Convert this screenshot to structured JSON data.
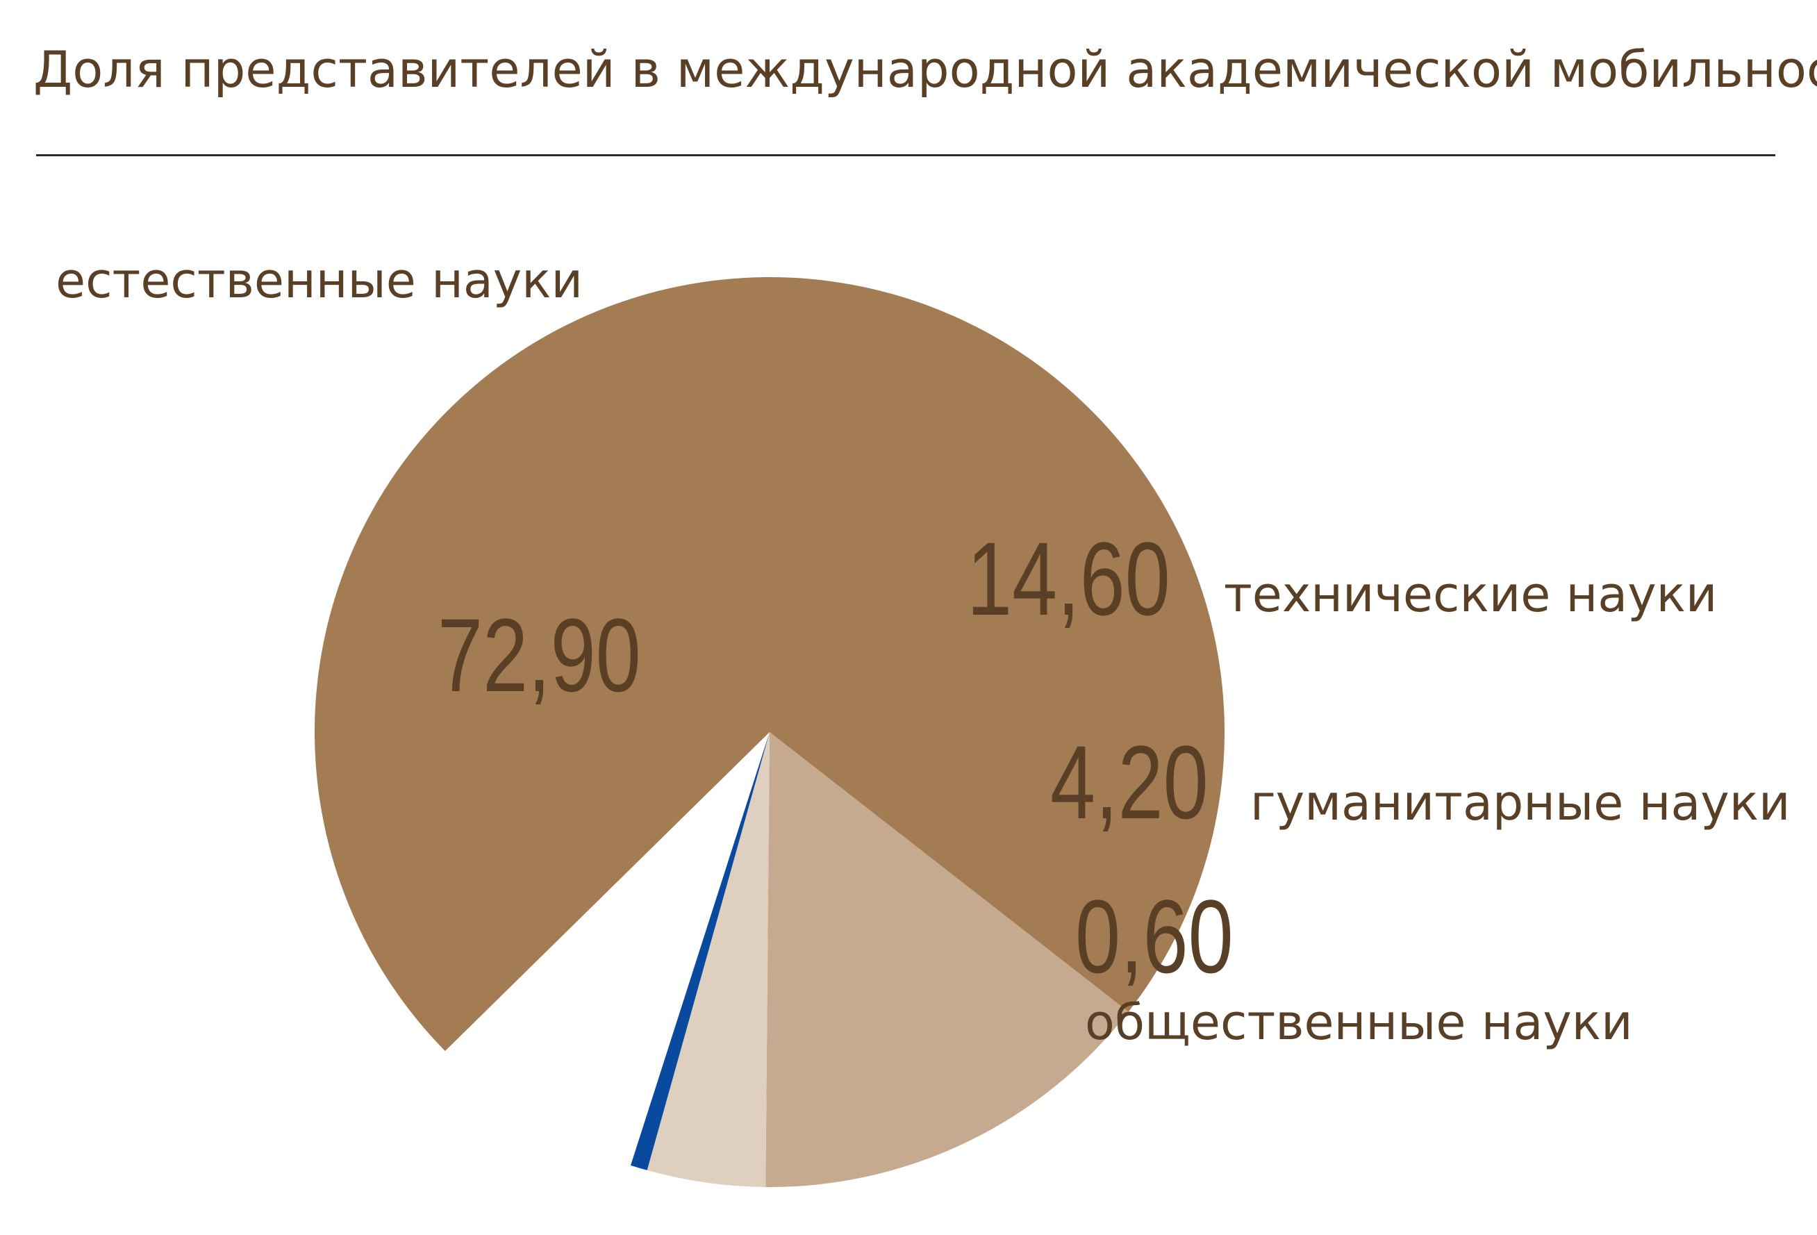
{
  "chart_data": {
    "type": "pie",
    "title": "Доля представителей в международной академической мобильности",
    "slices": [
      {
        "label": "естественные науки",
        "value": 72.9,
        "value_text": "72,90",
        "color": "#a47c53"
      },
      {
        "label": "технические науки",
        "value": 14.6,
        "value_text": "14,60",
        "color": "#c6aa8f"
      },
      {
        "label": "гуманитарные науки",
        "value": 4.2,
        "value_text": "4,20",
        "color": "#dfcfbe"
      },
      {
        "label": "общественные науки",
        "value": 0.6,
        "value_text": "0,60",
        "color": "#0a4a9e"
      }
    ]
  }
}
